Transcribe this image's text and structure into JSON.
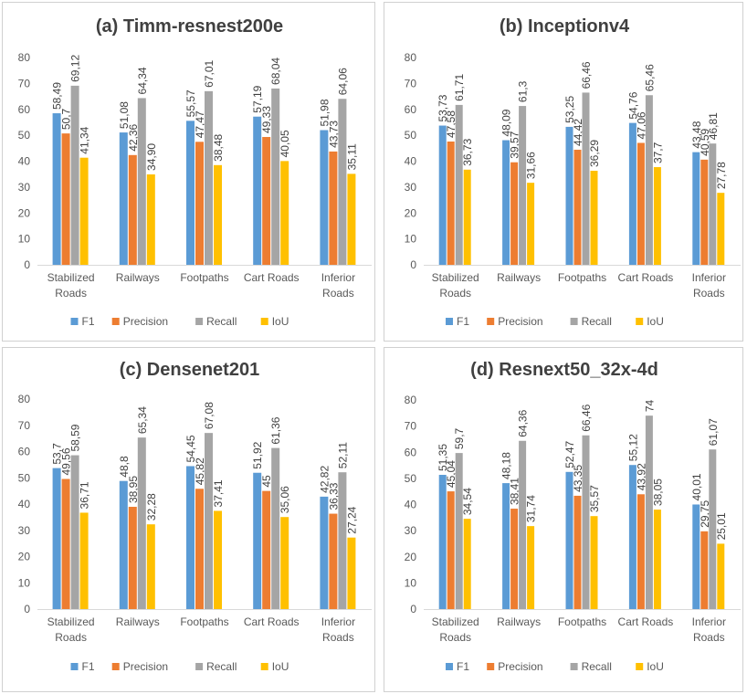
{
  "chart_data": [
    {
      "type": "bar",
      "title": "(a) Timm-resnest200e",
      "categories": [
        [
          "Stabilized",
          "Roads"
        ],
        [
          "Railways"
        ],
        [
          "Footpaths"
        ],
        [
          "Cart Roads"
        ],
        [
          "Inferior",
          "Roads"
        ]
      ],
      "series": [
        {
          "name": "F1",
          "values": [
            58.49,
            51.08,
            55.57,
            57.19,
            51.98
          ],
          "labels": [
            "58,49",
            "51,08",
            "55,57",
            "57,19",
            "51,98"
          ]
        },
        {
          "name": "Precision",
          "values": [
            50.7,
            42.36,
            47.47,
            49.33,
            43.73
          ],
          "labels": [
            "50,7",
            "42,36",
            "47,47",
            "49,33",
            "43,73"
          ]
        },
        {
          "name": "Recall",
          "values": [
            69.12,
            64.34,
            67.01,
            68.04,
            64.06
          ],
          "labels": [
            "69,12",
            "64,34",
            "67,01",
            "68,04",
            "64,06"
          ]
        },
        {
          "name": "IoU",
          "values": [
            41.34,
            34.9,
            38.48,
            40.05,
            35.11
          ],
          "labels": [
            "41,34",
            "34,90",
            "38,48",
            "40,05",
            "35,11"
          ]
        }
      ],
      "ylim": [
        0,
        80
      ],
      "yticks": [
        "0",
        "10",
        "20",
        "30",
        "40",
        "50",
        "60",
        "70",
        "80"
      ],
      "legend": "bottom",
      "grid": false
    },
    {
      "type": "bar",
      "title": "(b) Inceptionv4",
      "categories": [
        [
          "Stabilized",
          "Roads"
        ],
        [
          "Railways"
        ],
        [
          "Footpaths"
        ],
        [
          "Cart Roads"
        ],
        [
          "Inferior",
          "Roads"
        ]
      ],
      "series": [
        {
          "name": "F1",
          "values": [
            53.73,
            48.09,
            53.25,
            54.76,
            43.48
          ],
          "labels": [
            "53,73",
            "48,09",
            "53,25",
            "54,76",
            "43,48"
          ]
        },
        {
          "name": "Precision",
          "values": [
            47.58,
            39.57,
            44.42,
            47.06,
            40.59
          ],
          "labels": [
            "47,58",
            "39,57",
            "44,42",
            "47,06",
            "40,59"
          ]
        },
        {
          "name": "Recall",
          "values": [
            61.71,
            61.3,
            66.46,
            65.46,
            46.81
          ],
          "labels": [
            "61,71",
            "61,3",
            "66,46",
            "65,46",
            "46,81"
          ]
        },
        {
          "name": "IoU",
          "values": [
            36.73,
            31.66,
            36.29,
            37.7,
            27.78
          ],
          "labels": [
            "36,73",
            "31,66",
            "36,29",
            "37,7",
            "27,78"
          ]
        }
      ],
      "ylim": [
        0,
        80
      ],
      "yticks": [
        "0",
        "10",
        "20",
        "30",
        "40",
        "50",
        "60",
        "70",
        "80"
      ],
      "legend": "bottom",
      "grid": false
    },
    {
      "type": "bar",
      "title": "(c) Densenet201",
      "categories": [
        [
          "Stabilized",
          "Roads"
        ],
        [
          "Railways"
        ],
        [
          "Footpaths"
        ],
        [
          "Cart Roads"
        ],
        [
          "Inferior",
          "Roads"
        ]
      ],
      "series": [
        {
          "name": "F1",
          "values": [
            53.7,
            48.8,
            54.45,
            51.92,
            42.82
          ],
          "labels": [
            "53,7",
            "48,8",
            "54,45",
            "51,92",
            "42,82"
          ]
        },
        {
          "name": "Precision",
          "values": [
            49.56,
            38.95,
            45.82,
            45,
            36.33
          ],
          "labels": [
            "49,56",
            "38,95",
            "45,82",
            "45",
            "36,33"
          ]
        },
        {
          "name": "Recall",
          "values": [
            58.59,
            65.34,
            67.08,
            61.36,
            52.11
          ],
          "labels": [
            "58,59",
            "65,34",
            "67,08",
            "61,36",
            "52,11"
          ]
        },
        {
          "name": "IoU",
          "values": [
            36.71,
            32.28,
            37.41,
            35.06,
            27.24
          ],
          "labels": [
            "36,71",
            "32,28",
            "37,41",
            "35,06",
            "27,24"
          ]
        }
      ],
      "ylim": [
        0,
        80
      ],
      "yticks": [
        "0",
        "10",
        "20",
        "30",
        "40",
        "50",
        "60",
        "70",
        "80"
      ],
      "legend": "bottom",
      "grid": false
    },
    {
      "type": "bar",
      "title": "(d) Resnext50_32x-4d",
      "categories": [
        [
          "Stabilized",
          "Roads"
        ],
        [
          "Railways"
        ],
        [
          "Footpaths"
        ],
        [
          "Cart Roads"
        ],
        [
          "Inferior",
          "Roads"
        ]
      ],
      "series": [
        {
          "name": "F1",
          "values": [
            51.35,
            48.18,
            52.47,
            55.12,
            40.01
          ],
          "labels": [
            "51,35",
            "48,18",
            "52,47",
            "55,12",
            "40,01"
          ]
        },
        {
          "name": "Precision",
          "values": [
            45.04,
            38.41,
            43.35,
            43.92,
            29.75
          ],
          "labels": [
            "45,04",
            "38,41",
            "43,35",
            "43,92",
            "29,75"
          ]
        },
        {
          "name": "Recall",
          "values": [
            59.7,
            64.36,
            66.46,
            74,
            61.07
          ],
          "labels": [
            "59,7",
            "64,36",
            "66,46",
            "74",
            "61,07"
          ]
        },
        {
          "name": "IoU",
          "values": [
            34.54,
            31.74,
            35.57,
            38.05,
            25.01
          ],
          "labels": [
            "34,54",
            "31,74",
            "35,57",
            "38,05",
            "25,01"
          ]
        }
      ],
      "ylim": [
        0,
        80
      ],
      "yticks": [
        "0",
        "10",
        "20",
        "30",
        "40",
        "50",
        "60",
        "70",
        "80"
      ],
      "legend": "bottom",
      "grid": false
    }
  ],
  "colors": {
    "F1": "#5b9bd5",
    "Precision": "#ed7d31",
    "Recall": "#a5a5a5",
    "IoU": "#ffc000"
  }
}
